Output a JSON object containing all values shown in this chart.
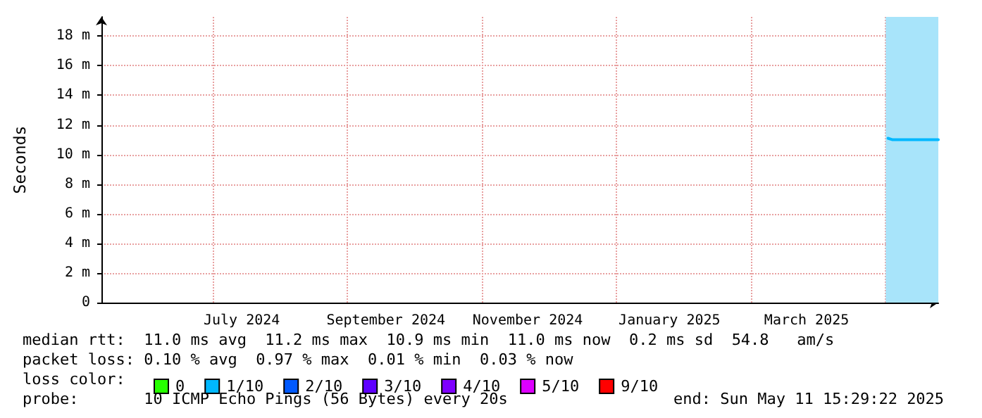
{
  "chart_data": {
    "type": "line",
    "ylabel": "Seconds",
    "x": [
      "2025-04-20T00:00",
      "2025-04-22T00:00",
      "2025-04-25T00:00",
      "2025-04-28T00:00",
      "2025-05-01T00:00",
      "2025-05-04T00:00",
      "2025-05-07T00:00",
      "2025-05-09T00:00",
      "2025-05-11T15:29"
    ],
    "series": [
      {
        "name": "0",
        "color": "#26ff00",
        "values": [
          null,
          null,
          null,
          null,
          null,
          null,
          null,
          null,
          null
        ]
      },
      {
        "name": "1/10",
        "color": "#00b8ff",
        "values": [
          11.1,
          11.0,
          11.0,
          11.0,
          11.0,
          11.0,
          11.0,
          11.0,
          11.0
        ]
      },
      {
        "name": "2/10",
        "color": "#0059ff",
        "values": [
          null,
          null,
          null,
          null,
          null,
          null,
          null,
          null,
          null
        ]
      },
      {
        "name": "3/10",
        "color": "#5e00ff",
        "values": [
          null,
          null,
          null,
          null,
          null,
          null,
          null,
          null,
          null
        ]
      },
      {
        "name": "4/10",
        "color": "#7e00ff",
        "values": [
          null,
          null,
          null,
          null,
          null,
          null,
          null,
          null,
          null
        ]
      },
      {
        "name": "5/10",
        "color": "#dd00ff",
        "values": [
          null,
          null,
          null,
          null,
          null,
          null,
          null,
          null,
          null
        ]
      },
      {
        "name": "9/10",
        "color": "#ff0000",
        "values": [
          null,
          null,
          null,
          null,
          null,
          null,
          null,
          null,
          null
        ]
      }
    ],
    "xlim": [
      "2024-05-16T15:29",
      "2025-05-11T15:29"
    ],
    "xticks": [
      {
        "value": "2024-07-16",
        "label": "July 2024"
      },
      {
        "value": "2024-09-16",
        "label": "September 2024"
      },
      {
        "value": "2024-11-16",
        "label": "November 2024"
      },
      {
        "value": "2025-01-16",
        "label": "January 2025"
      },
      {
        "value": "2025-03-16",
        "label": "March 2025"
      }
    ],
    "ylim": [
      0,
      19.3
    ],
    "yticks": [
      0,
      {
        "value": 2,
        "label": "2 m"
      },
      {
        "value": 4,
        "label": "4 m"
      },
      {
        "value": 6,
        "label": "6 m"
      },
      {
        "value": 8,
        "label": "8 m"
      },
      {
        "value": 10,
        "label": "10 m"
      },
      {
        "value": 12,
        "label": "12 m"
      },
      {
        "value": 14,
        "label": "14 m"
      },
      {
        "value": 16,
        "label": "16 m"
      },
      {
        "value": 18,
        "label": "18 m"
      }
    ],
    "bands": [
      {
        "axis": "x",
        "from": "2025-04-19T00:00",
        "to": "2025-05-11T15:29",
        "color": "#a8e4fa"
      }
    ],
    "grid": true,
    "legend": "bottom left",
    "marker": "none",
    "line_style": "solid",
    "annotations": [
      "median rtt:  11.0 ms avg  11.2 ms max  10.9 ms min  11.0 ms now  0.2 ms sd  54.8   am/s",
      "packet loss: 0.10 % avg  0.97 % max  0.01 % min  0.03 % now",
      "loss color:",
      "probe:       10 ICMP Echo Pings (56 Bytes) every 20s",
      "end: Sun May 11 15:29:22 2025"
    ]
  }
}
